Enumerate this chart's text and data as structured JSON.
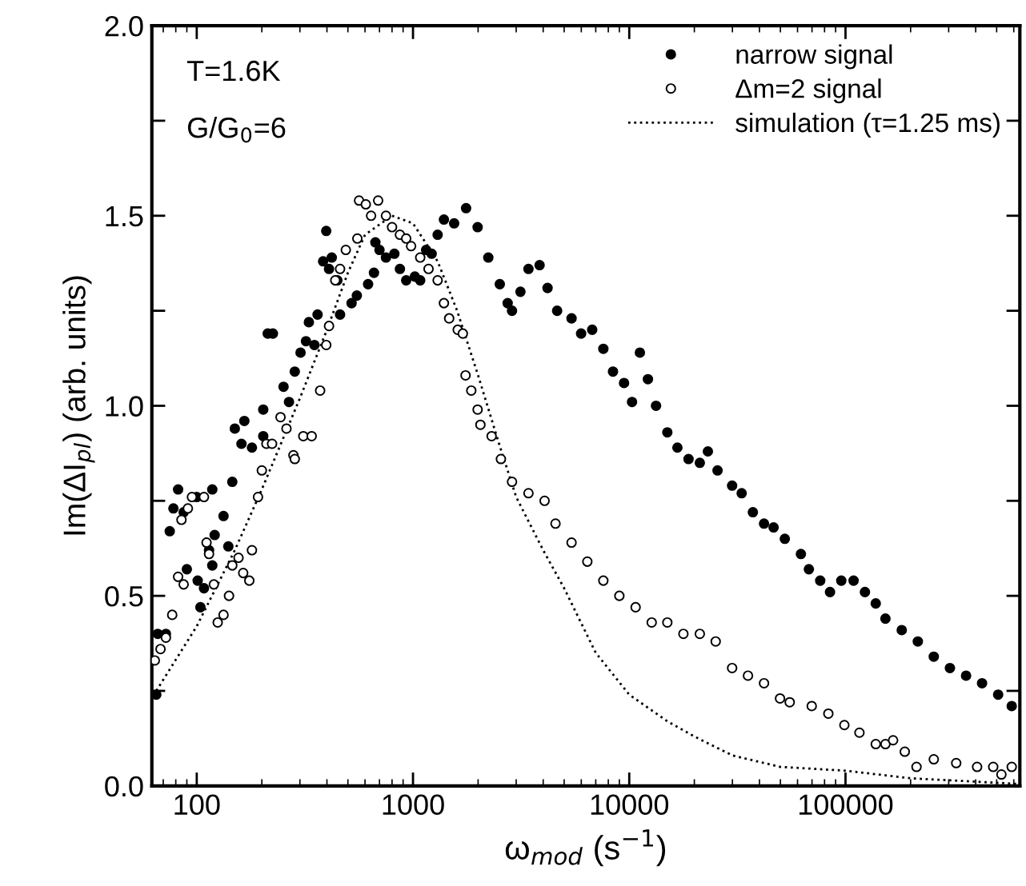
{
  "chart_data": {
    "type": "scatter",
    "xlabel": "ω$_{mod}$ (s$^{−1}$)",
    "ylabel": "Im(ΔI$_{pl}$) (arb. units)",
    "annotations": [
      "T=1.6K",
      "G/G$_{0}$=6"
    ],
    "log": "x",
    "xlim": [
      62,
      640000
    ],
    "xticks": [
      100,
      1000,
      10000,
      100000
    ],
    "ylim": [
      0,
      2.0
    ],
    "yticks": [
      {
        "value": 0,
        "label": "0.0"
      },
      {
        "value": 0.25,
        "label": null
      },
      {
        "value": 0.5,
        "label": "0.5"
      },
      {
        "value": 0.75,
        "label": null
      },
      {
        "value": 1.0,
        "label": "1.0"
      },
      {
        "value": 1.25,
        "label": null
      },
      {
        "value": 1.5,
        "label": "1.5"
      },
      {
        "value": 1.75,
        "label": null
      },
      {
        "value": 2.0,
        "label": "2.0"
      }
    ],
    "legend": "top right",
    "grid": false,
    "series": [
      {
        "name": "narrow signal",
        "marker": "circle",
        "color": "#000000",
        "x": [
          65,
          66,
          72,
          75,
          78,
          82,
          87,
          90,
          100,
          101,
          104,
          108,
          114,
          118,
          118,
          121,
          133,
          140,
          146,
          150,
          161,
          166,
          180,
          203,
          203,
          213,
          225,
          252,
          267,
          284,
          302,
          320,
          330,
          350,
          362,
          384,
          397,
          409,
          421,
          447,
          460,
          520,
          550,
          620,
          660,
          670,
          700,
          750,
          820,
          870,
          930,
          1020,
          1080,
          1150,
          1220,
          1300,
          1390,
          1550,
          1760,
          1990,
          2230,
          2520,
          2740,
          2870,
          3140,
          3420,
          3850,
          4190,
          4640,
          5410,
          5990,
          6740,
          7590,
          8410,
          9460,
          10300,
          11200,
          12200,
          13300,
          15000,
          16700,
          18800,
          21200,
          23100,
          25600,
          29900,
          33100,
          37300,
          42000,
          46500,
          52400,
          62200,
          67700,
          76400,
          84800,
          95600,
          109000,
          123000,
          138000,
          153000,
          182000,
          216000,
          256000,
          304000,
          361000,
          428000,
          508000,
          587000
        ],
        "values": [
          0.24,
          0.4,
          0.4,
          0.67,
          0.73,
          0.78,
          0.72,
          0.57,
          0.76,
          0.54,
          0.47,
          0.52,
          0.62,
          0.78,
          0.58,
          0.66,
          0.71,
          0.63,
          0.8,
          0.94,
          0.9,
          0.96,
          0.89,
          0.99,
          0.92,
          1.19,
          1.19,
          1.05,
          1.01,
          1.09,
          1.14,
          1.17,
          1.22,
          1.16,
          1.24,
          1.38,
          1.46,
          1.36,
          1.39,
          1.33,
          1.24,
          1.27,
          1.29,
          1.32,
          1.35,
          1.43,
          1.41,
          1.39,
          1.4,
          1.36,
          1.33,
          1.34,
          1.33,
          1.41,
          1.4,
          1.45,
          1.49,
          1.48,
          1.52,
          1.47,
          1.39,
          1.32,
          1.27,
          1.25,
          1.3,
          1.36,
          1.37,
          1.31,
          1.25,
          1.23,
          1.19,
          1.2,
          1.15,
          1.09,
          1.06,
          1.01,
          1.14,
          1.07,
          1.0,
          0.93,
          0.89,
          0.86,
          0.85,
          0.88,
          0.83,
          0.79,
          0.77,
          0.72,
          0.69,
          0.68,
          0.65,
          0.61,
          0.57,
          0.54,
          0.51,
          0.54,
          0.54,
          0.51,
          0.48,
          0.44,
          0.41,
          0.38,
          0.34,
          0.31,
          0.29,
          0.27,
          0.24,
          0.21
        ]
      },
      {
        "name": "Δm=2 signal",
        "marker": "circle",
        "color": "#ffffff",
        "x": [
          64,
          68,
          72,
          77,
          82,
          85,
          87,
          91,
          95,
          108,
          111,
          114,
          120,
          125,
          133,
          141,
          146,
          156,
          164,
          175,
          180,
          192,
          200,
          210,
          223,
          244,
          260,
          280,
          284,
          311,
          340,
          372,
          397,
          409,
          437,
          460,
          489,
          553,
          563,
          605,
          640,
          690,
          750,
          800,
          870,
          930,
          980,
          1080,
          1180,
          1300,
          1390,
          1470,
          1610,
          1700,
          1750,
          1860,
          1990,
          2050,
          2310,
          2550,
          2870,
          3420,
          4060,
          4560,
          5410,
          6400,
          7590,
          9000,
          10700,
          12700,
          15000,
          17800,
          21200,
          25100,
          29900,
          35400,
          42000,
          49800,
          55200,
          69800,
          83300,
          98800,
          116000,
          138000,
          153000,
          166000,
          188000,
          213000,
          256000,
          325000,
          406000,
          482000,
          526000,
          587000
        ],
        "values": [
          0.33,
          0.36,
          0.39,
          0.45,
          0.55,
          0.7,
          0.53,
          0.73,
          0.76,
          0.76,
          0.64,
          0.61,
          0.53,
          0.43,
          0.45,
          0.5,
          0.58,
          0.6,
          0.56,
          0.54,
          0.62,
          0.76,
          0.83,
          0.9,
          0.9,
          0.97,
          0.94,
          0.87,
          0.86,
          0.92,
          0.92,
          1.04,
          1.16,
          1.21,
          1.33,
          1.36,
          1.41,
          1.44,
          1.54,
          1.53,
          1.5,
          1.54,
          1.5,
          1.47,
          1.45,
          1.44,
          1.42,
          1.39,
          1.36,
          1.33,
          1.27,
          1.23,
          1.2,
          1.19,
          1.08,
          1.04,
          0.99,
          0.95,
          0.92,
          0.86,
          0.8,
          0.77,
          0.75,
          0.69,
          0.64,
          0.59,
          0.54,
          0.5,
          0.47,
          0.43,
          0.43,
          0.4,
          0.4,
          0.38,
          0.31,
          0.29,
          0.27,
          0.23,
          0.22,
          0.21,
          0.19,
          0.16,
          0.14,
          0.11,
          0.11,
          0.12,
          0.09,
          0.05,
          0.07,
          0.06,
          0.05,
          0.05,
          0.03,
          0.05
        ]
      },
      {
        "name": "simulation (τ=1.25 ms)",
        "type": "line",
        "line_style": "dotted",
        "marker": "none",
        "color": "#000000",
        "x": [
          65,
          100,
          150,
          200,
          300,
          400,
          500,
          600,
          800,
          1000,
          1300,
          1600,
          2000,
          2500,
          3000,
          4000,
          5000,
          7000,
          10000,
          15000,
          20000,
          30000,
          50000,
          100000,
          200000,
          640000
        ],
        "values": [
          0.25,
          0.42,
          0.62,
          0.78,
          1.02,
          1.2,
          1.35,
          1.45,
          1.5,
          1.48,
          1.38,
          1.25,
          1.08,
          0.9,
          0.76,
          0.62,
          0.52,
          0.35,
          0.24,
          0.17,
          0.13,
          0.08,
          0.05,
          0.04,
          0.02,
          0.005
        ]
      }
    ]
  }
}
